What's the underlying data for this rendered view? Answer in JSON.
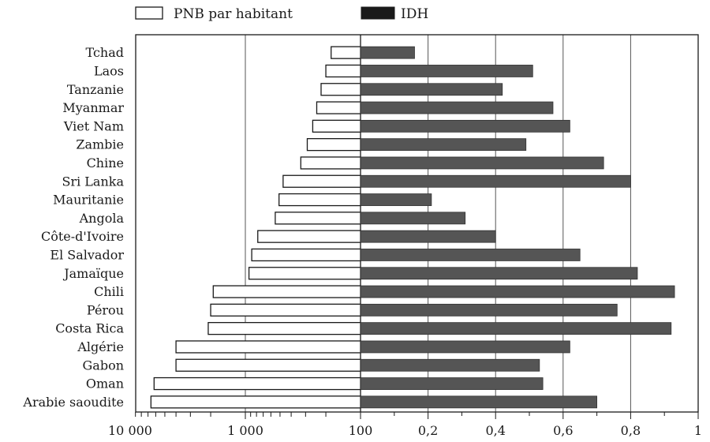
{
  "chart_data": {
    "type": "bar",
    "legend": {
      "placement": "top-left",
      "items": [
        {
          "label": "PNB par habitant",
          "swatch": "outline"
        },
        {
          "label": "IDH",
          "swatch": "filled"
        }
      ]
    },
    "categories": [
      "Tchad",
      "Laos",
      "Tanzanie",
      "Myanmar",
      "Viet Nam",
      "Zambie",
      "Chine",
      "Sri Lanka",
      "Mauritanie",
      "Angola",
      "Côte-d'Ivoire",
      "El Salvador",
      "Jamaïque",
      "Chili",
      "Pérou",
      "Costa Rica",
      "Algérie",
      "Gabon",
      "Oman",
      "Arabie saoudite"
    ],
    "series": [
      {
        "name": "PNB par habitant",
        "axis": "left",
        "scale": "log",
        "values": [
          180,
          200,
          220,
          240,
          260,
          290,
          330,
          470,
          510,
          550,
          780,
          880,
          930,
          1900,
          2000,
          2100,
          4000,
          4000,
          6200,
          6600
        ]
      },
      {
        "name": "IDH",
        "axis": "right",
        "scale": "linear",
        "values": [
          0.16,
          0.51,
          0.42,
          0.57,
          0.62,
          0.49,
          0.72,
          0.8,
          0.21,
          0.31,
          0.4,
          0.65,
          0.82,
          0.93,
          0.76,
          0.92,
          0.62,
          0.53,
          0.54,
          0.7
        ]
      }
    ],
    "x_left": {
      "scale": "log",
      "range": [
        10000,
        100
      ],
      "ticks": [
        "10 000",
        "1 000",
        "100"
      ],
      "tick_values": [
        10000,
        1000,
        100
      ]
    },
    "x_right": {
      "scale": "linear",
      "range": [
        0,
        1
      ],
      "ticks": [
        "0,2",
        "0,4",
        "0,6",
        "0,8",
        "1"
      ],
      "tick_values": [
        0.2,
        0.4,
        0.6,
        0.8,
        1
      ]
    },
    "grid": true,
    "colors": {
      "idh_fill": "#555555",
      "pnb_fill": "#ffffff",
      "stroke": "#1a1a1a",
      "grid": "#555555"
    }
  }
}
